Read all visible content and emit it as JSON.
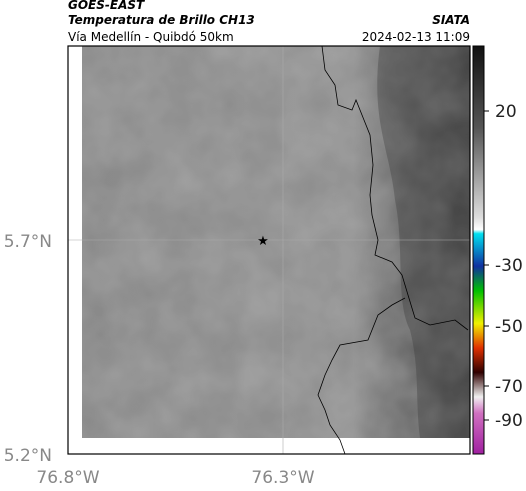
{
  "header": {
    "source": "GOES-EAST",
    "product": "Temperatura de Brillo CH13",
    "agency": "SIATA",
    "route": "Vía Medellín - Quibdó 50km",
    "timestamp": "2024-02-13 11:09"
  },
  "map": {
    "lat_labels": [
      "5.7°N",
      "5.2°N"
    ],
    "lon_labels": [
      "76.8°W",
      "76.3°W"
    ]
  },
  "colorbar": {
    "labels": [
      "20",
      "-30",
      "-50",
      "-70",
      "-90"
    ]
  }
}
